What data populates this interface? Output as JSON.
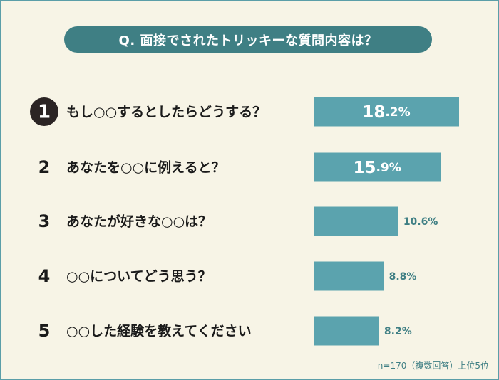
{
  "title": "Q. 面接でされたトリッキーな質問内容は？",
  "footnote": "n=170（複数回答）上位5位",
  "colors": {
    "background": "#f7f4e6",
    "bar": "#5ba3ae",
    "title_bg": "#3f7f84",
    "text": "#1a1a1a",
    "rank1_badge": "#2b2424",
    "value_label": "#3f7f84"
  },
  "chart_data": {
    "type": "bar",
    "orientation": "horizontal",
    "title": "Q. 面接でされたトリッキーな質問内容は？",
    "unit": "%",
    "ranks": [
      "1",
      "2",
      "3",
      "4",
      "5"
    ],
    "categories": [
      "もし○○するとしたらどうする？",
      "あなたを○○に例えると？",
      "あなたが好きな○○は？",
      "○○についてどう思う？",
      "○○した経験を教えてください"
    ],
    "values": [
      18.2,
      15.9,
      10.6,
      8.8,
      8.2
    ],
    "value_labels": [
      "18.2%",
      "15.9%",
      "10.6%",
      "8.8%",
      "8.2%"
    ],
    "xlim": [
      0,
      18.2
    ],
    "grid": false,
    "legend": "none"
  }
}
